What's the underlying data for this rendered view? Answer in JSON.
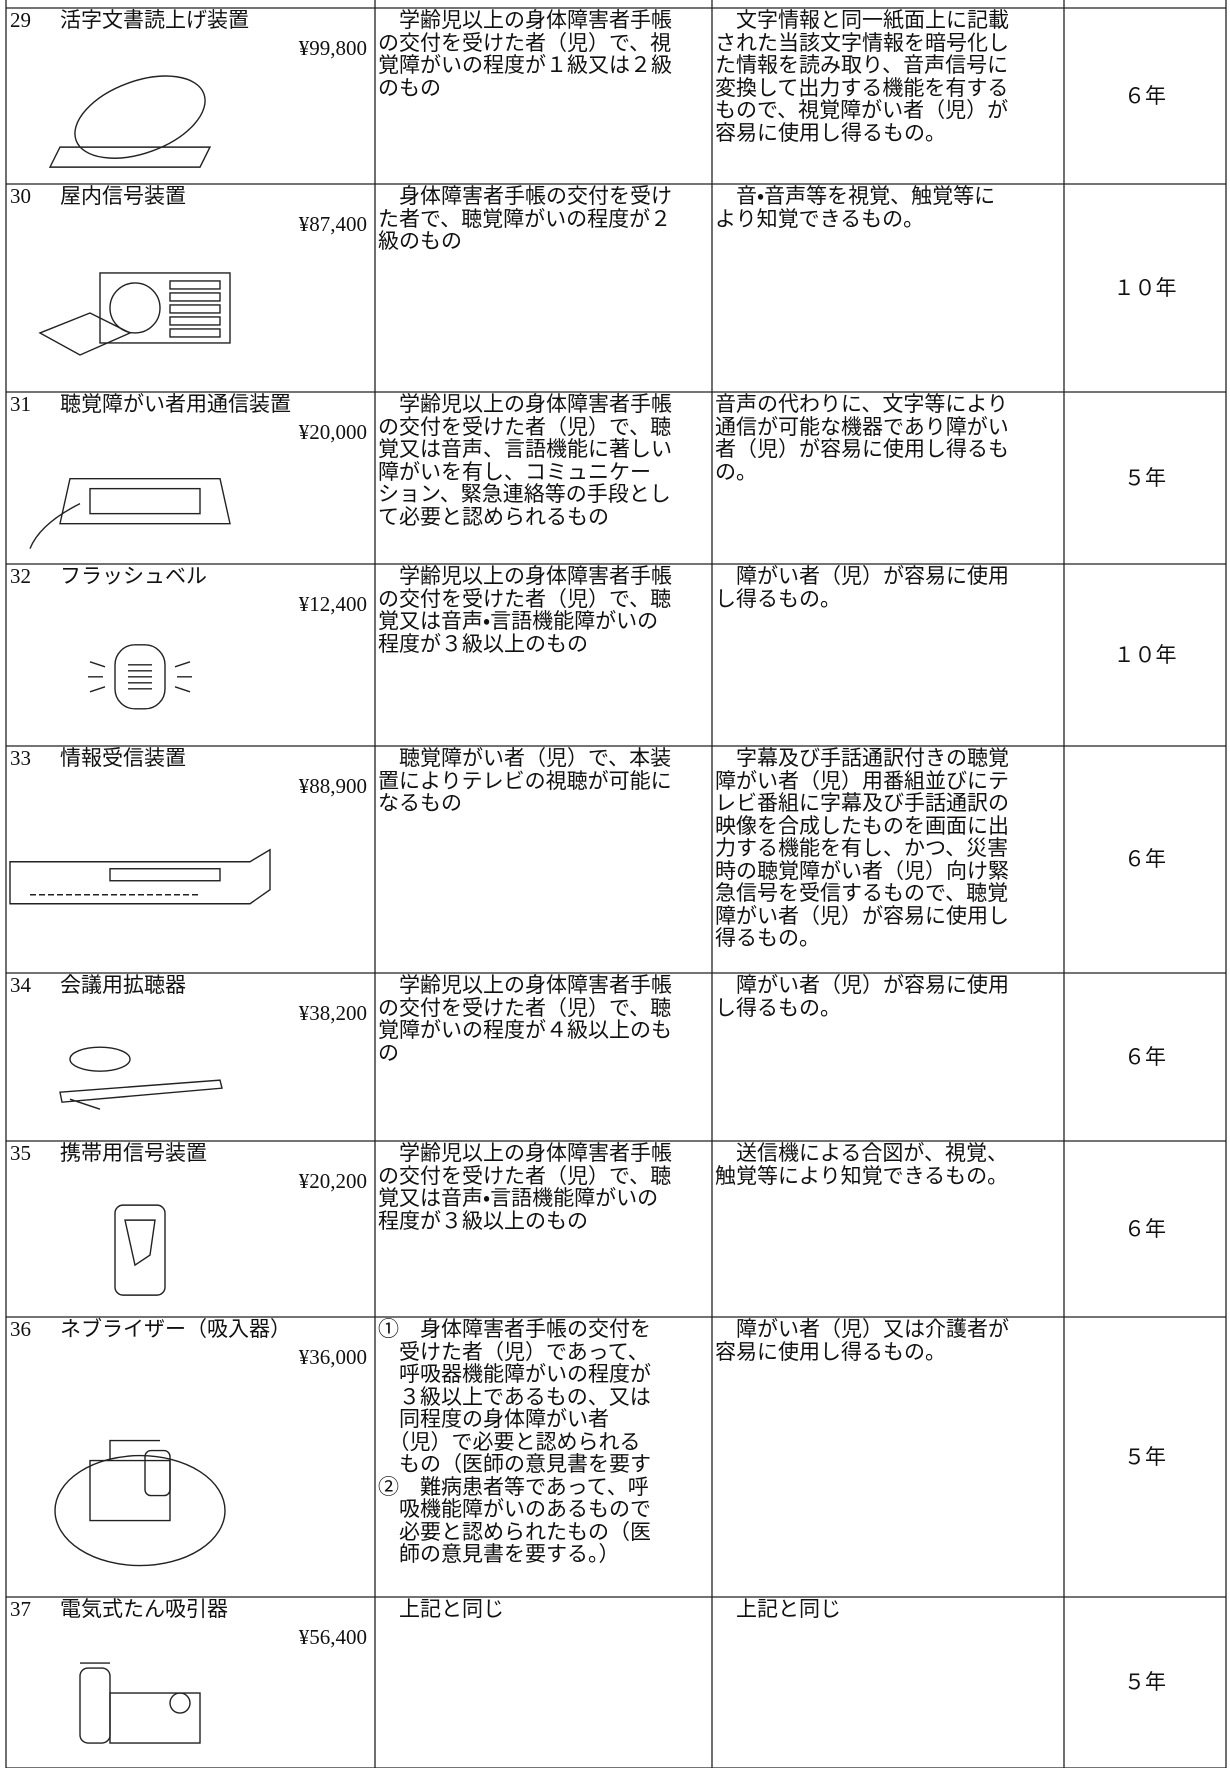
{
  "table": {
    "rows": [
      {
        "number": "29",
        "name": "活字文書読上げ装置",
        "price": "¥99,800",
        "eligibility": [
          "　学齢児以上の身体障害者手帳",
          "の交付を受けた者（児）で、視",
          "覚障がいの程度が１級又は２級",
          "のもの"
        ],
        "features": [
          "　文字情報と同一紙面上に記載",
          "された当該文字情報を暗号化し",
          "た情報を読み取り、音声信号に",
          "変換して出力する機能を有する",
          "もので、視覚障がい者（児）が",
          "容易に使用し得るもの。"
        ],
        "years": "６年"
      },
      {
        "number": "30",
        "name": "屋内信号装置",
        "price": "¥87,400",
        "eligibility": [
          "　身体障害者手帳の交付を受け",
          "た者で、聴覚障がいの程度が２",
          "級のもの"
        ],
        "features": [
          "　音・音声等を視覚、触覚等に",
          "より知覚できるもの。"
        ],
        "years": "１０年"
      },
      {
        "number": "31",
        "name": "聴覚障がい者用通信装置",
        "price": "¥20,000",
        "eligibility": [
          "　学齢児以上の身体障害者手帳",
          "の交付を受けた者（児）で、聴",
          "覚又は音声、言語機能に著しい",
          "障がいを有し、コミュニケー",
          "ション、緊急連絡等の手段とし",
          "て必要と認められるもの"
        ],
        "features": [
          "音声の代わりに、文字等により",
          "通信が可能な機器であり障がい",
          "者（児）が容易に使用し得るも",
          "の。"
        ],
        "years": "５年"
      },
      {
        "number": "32",
        "name": "フラッシュベル",
        "price": "¥12,400",
        "eligibility": [
          "　学齢児以上の身体障害者手帳",
          "の交付を受けた者（児）で、聴",
          "覚又は音声・言語機能障がいの",
          "程度が３級以上のもの"
        ],
        "features": [
          "　障がい者（児）が容易に使用",
          "し得るもの。"
        ],
        "years": "１０年"
      },
      {
        "number": "33",
        "name": "情報受信装置",
        "price": "¥88,900",
        "eligibility": [
          "　聴覚障がい者（児）で、本装",
          "置によりテレビの視聴が可能に",
          "なるもの"
        ],
        "features": [
          "　字幕及び手話通訳付きの聴覚",
          "障がい者（児）用番組並びにテ",
          "レビ番組に字幕及び手話通訳の",
          "映像を合成したものを画面に出",
          "力する機能を有し、かつ、災害",
          "時の聴覚障がい者（児）向け緊",
          "急信号を受信するもので、聴覚",
          "障がい者（児）が容易に使用し",
          "得るもの。"
        ],
        "years": "６年"
      },
      {
        "number": "34",
        "name": "会議用拡聴器",
        "price": "¥38,200",
        "eligibility": [
          "　学齢児以上の身体障害者手帳",
          "の交付を受けた者（児）で、聴",
          "覚障がいの程度が４級以上のも",
          "の"
        ],
        "features": [
          "　障がい者（児）が容易に使用",
          "し得るもの。"
        ],
        "years": "６年"
      },
      {
        "number": "35",
        "name": "携帯用信号装置",
        "price": "¥20,200",
        "eligibility": [
          "　学齢児以上の身体障害者手帳",
          "の交付を受けた者（児）で、聴",
          "覚又は音声・言語機能障がいの",
          "程度が３級以上のもの"
        ],
        "features": [
          "　送信機による合図が、視覚、",
          "触覚等により知覚できるもの。"
        ],
        "years": "６年"
      },
      {
        "number": "36",
        "name": "ネブライザー（吸入器）",
        "price": "¥36,000",
        "eligibility": [
          "①　身体障害者手帳の交付を",
          "　受けた者（児）であって、",
          "　呼吸器機能障がいの程度が",
          "　３級以上であるもの、又は",
          "　同程度の身体障がい者",
          "　（児）で必要と認められる",
          "　もの（医師の意見書を要す",
          "②　難病患者等であって、呼",
          "　吸機能障がいのあるもので",
          "　必要と認められたもの（医",
          "　師の意見書を要する。）"
        ],
        "features": [
          "　障がい者（児）又は介護者が",
          "容易に使用し得るもの。"
        ],
        "years": "５年"
      },
      {
        "number": "37",
        "name": "電気式たん吸引器",
        "price": "¥56,400",
        "eligibility": [
          "　上記と同じ"
        ],
        "features": [
          "　上記と同じ"
        ],
        "years": "５年"
      }
    ]
  }
}
